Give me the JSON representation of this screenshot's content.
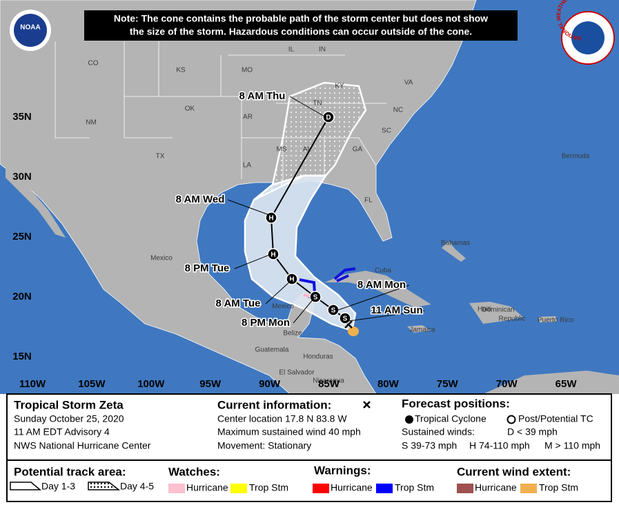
{
  "note": [
    "Note: The cone contains the probable path of the storm center but does not show",
    "the size of the storm. Hazardous conditions can occur outside of the cone."
  ],
  "logos": {
    "noaa": "NOAA",
    "nws": "NATIONAL WEATHER SERVICE"
  },
  "map": {
    "lat_labels": [
      "35N",
      "30N",
      "25N",
      "20N",
      "15N"
    ],
    "lon_labels": [
      "110W",
      "105W",
      "100W",
      "95W",
      "90W",
      "85W",
      "80W",
      "75W",
      "70W",
      "65W"
    ],
    "places": [
      "CO",
      "KS",
      "MO",
      "IL",
      "IN",
      "KY",
      "VA",
      "TN",
      "NC",
      "OK",
      "AR",
      "SC",
      "NM",
      "MS",
      "AL",
      "GA",
      "TX",
      "LA",
      "FL",
      "Bermuda",
      "Mexico",
      "Bahamas",
      "Cuba",
      "Haiti",
      "Dominican",
      "Republic",
      "Puerto Rico",
      "Jamaica",
      "Mexico",
      "Belize",
      "Guatemala",
      "Honduras",
      "El Salvador",
      "Nicaragua"
    ],
    "track_points": [
      "S",
      "S",
      "S",
      "H",
      "H",
      "H",
      "D"
    ],
    "times": [
      "8 AM Thu",
      "8 AM Wed",
      "8 PM Tue",
      "8 AM Tue",
      "8 PM Mon",
      "8 AM Mon",
      "11 AM Sun"
    ]
  },
  "info": {
    "storm": "Tropical Storm Zeta",
    "date": "Sunday October 25, 2020",
    "advisory": "11 AM EDT Advisory 4",
    "center": "NWS National Hurricane Center",
    "current": {
      "title": "Current information:",
      "lines": [
        "Center location 17.8 N 83.8 W",
        "Maximum sustained wind 40 mph",
        "Movement: Stationary"
      ]
    },
    "forecast": {
      "title": "Forecast positions:",
      "tropical": "Tropical Cyclone",
      "post": "Post/Potential TC",
      "sustained": "Sustained winds:",
      "d": "D < 39 mph",
      "s": "S 39-73 mph",
      "h": "H 74-110 mph",
      "m": "M > 110 mph"
    }
  },
  "legend": {
    "track": {
      "title": "Potential track area:",
      "day13": "Day 1-3",
      "day45": "Day 4-5"
    },
    "watches": {
      "title": "Watches:",
      "hurricane": "Hurricane",
      "trop": "Trop Stm"
    },
    "warnings": {
      "title": "Warnings:",
      "hurricane": "Hurricane",
      "trop": "Trop Stm"
    },
    "wind": {
      "title": "Current wind extent:",
      "hurricane": "Hurricane",
      "trop": "Trop Stm"
    }
  }
}
